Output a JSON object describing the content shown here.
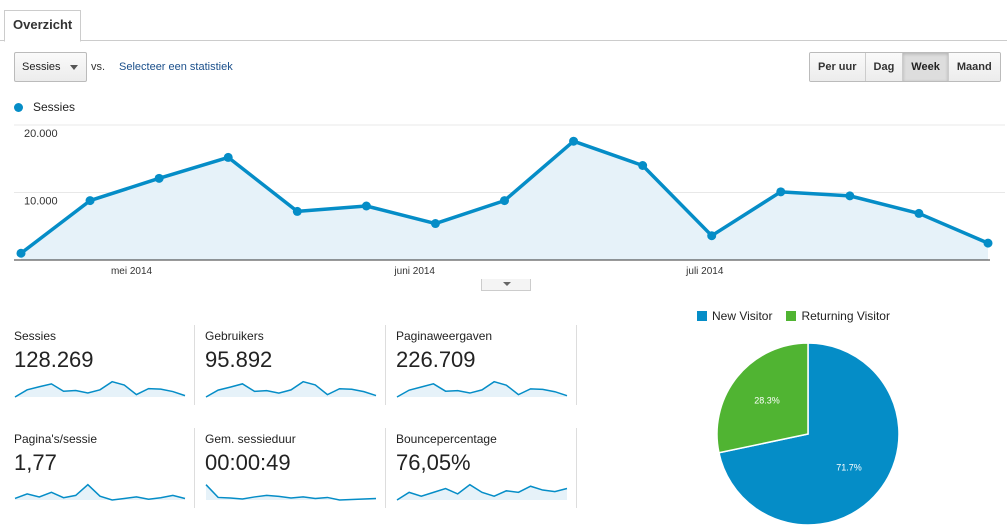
{
  "tabs": [
    {
      "label": "Overzicht"
    }
  ],
  "toolbar": {
    "metric_select": "Sessies",
    "vs_label": "vs.",
    "select_stat_link": "Selecteer een statistiek",
    "periods": [
      {
        "label": "Per uur",
        "active": false
      },
      {
        "label": "Dag",
        "active": false
      },
      {
        "label": "Week",
        "active": true
      },
      {
        "label": "Maand",
        "active": false
      }
    ]
  },
  "colors": {
    "primary": "#058dc7",
    "fill": "#e6f2f9",
    "returning": "#50b432"
  },
  "chart_data": [
    {
      "type": "area",
      "legend": "Sessies",
      "y_tick_labels": [
        "20.000",
        "10.000"
      ],
      "y_ticks": [
        20000,
        10000
      ],
      "ylim": [
        0,
        20000
      ],
      "x_tick_labels": [
        "mei 2014",
        "juni 2014",
        "juli 2014"
      ],
      "x_tick_index": [
        1.6,
        5.7,
        9.9
      ],
      "values": [
        1000,
        8800,
        12100,
        15200,
        7200,
        8000,
        5400,
        8800,
        17600,
        14000,
        3600,
        10100,
        9500,
        6900,
        2500
      ],
      "grid": true
    },
    {
      "type": "pie",
      "slices": [
        {
          "name": "New Visitor",
          "value": 71.7,
          "label": "71.7%",
          "color": "#058dc7"
        },
        {
          "name": "Returning Visitor",
          "value": 28.3,
          "label": "28.3%",
          "color": "#50b432"
        }
      ],
      "legend_position": "top"
    }
  ],
  "stats": [
    {
      "label": "Sessies",
      "value": "128.269",
      "spark": [
        1000,
        8800,
        12100,
        15200,
        7200,
        8000,
        5400,
        8800,
        17600,
        14000,
        3600,
        10100,
        9500,
        6900,
        2500
      ]
    },
    {
      "label": "Gebruikers",
      "value": "95.892",
      "spark": [
        800,
        7200,
        10000,
        13000,
        6000,
        6700,
        4400,
        7400,
        15000,
        12000,
        3000,
        8500,
        8000,
        5800,
        2100
      ]
    },
    {
      "label": "Paginaweergaven",
      "value": "226.709",
      "spark": [
        2000,
        15000,
        21000,
        27000,
        13000,
        14000,
        9500,
        15500,
        31000,
        24500,
        6500,
        17500,
        16500,
        12000,
        4500
      ]
    },
    {
      "label": "Pagina's/sessie",
      "value": "1,77",
      "spark": [
        1.72,
        1.78,
        1.74,
        1.8,
        1.73,
        1.76,
        1.9,
        1.75,
        1.7,
        1.72,
        1.74,
        1.71,
        1.73,
        1.76,
        1.72
      ]
    },
    {
      "label": "Gem. sessieduur",
      "value": "00:00:49",
      "spark": [
        70,
        45,
        44,
        42,
        46,
        49,
        47,
        44,
        46,
        43,
        45,
        40,
        41,
        42,
        43
      ]
    },
    {
      "label": "Bouncepercentage",
      "value": "76,05%",
      "spark": [
        75,
        76,
        75.5,
        76,
        76.5,
        75.8,
        77,
        76,
        75.5,
        76.2,
        76,
        76.8,
        76.3,
        76.1,
        76.5
      ]
    }
  ]
}
